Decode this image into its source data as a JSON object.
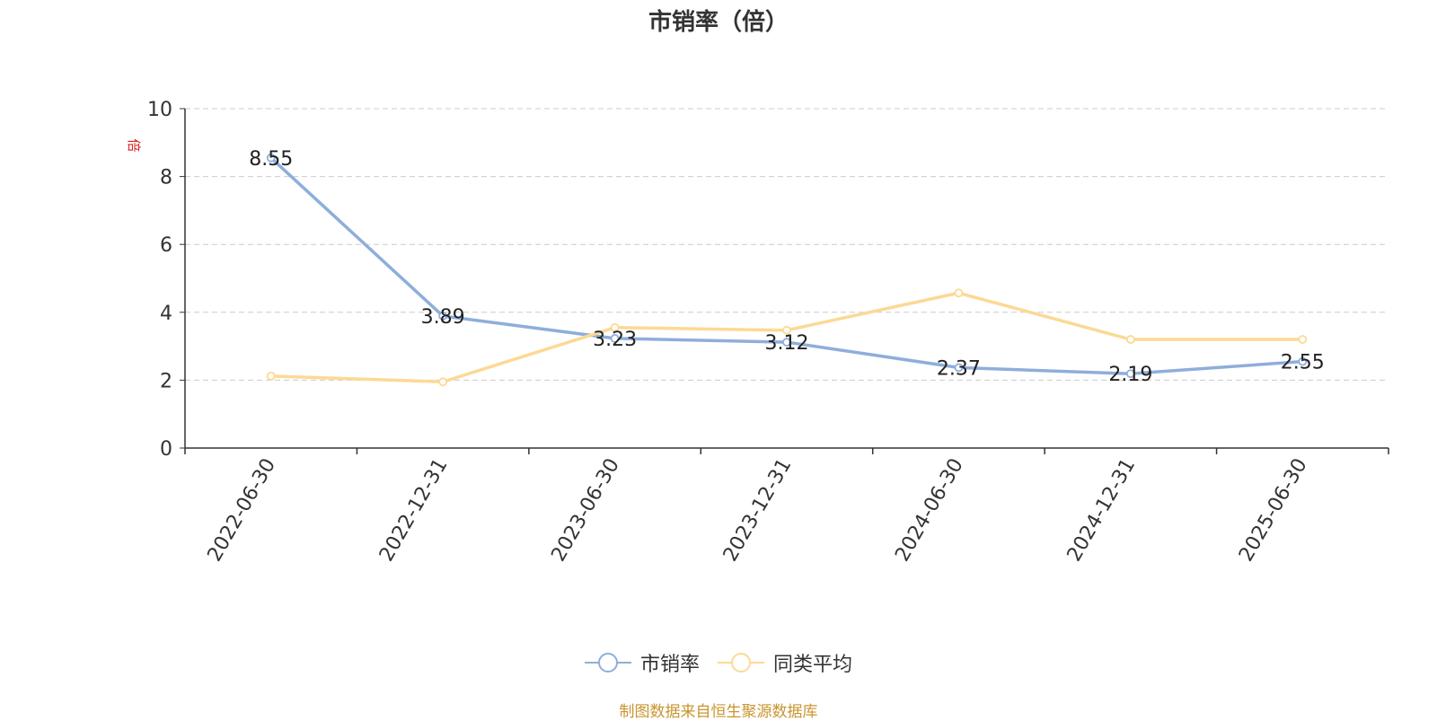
{
  "chart_data": {
    "type": "line",
    "title": "市销率（倍）",
    "ylabel": "倍",
    "ylim": [
      0,
      10
    ],
    "yticks": [
      0,
      2,
      4,
      6,
      8,
      10
    ],
    "categories": [
      "2022-06-30",
      "2022-12-31",
      "2023-06-30",
      "2023-12-31",
      "2024-06-30",
      "2024-12-31",
      "2025-06-30"
    ],
    "series": [
      {
        "name": "市销率",
        "color": "#8eaedb",
        "values": [
          8.55,
          3.89,
          3.23,
          3.12,
          2.37,
          2.19,
          2.55
        ],
        "data_labels": [
          "8.55",
          "3.89",
          "3.23",
          "3.12",
          "2.37",
          "2.19",
          "2.55"
        ]
      },
      {
        "name": "同类平均",
        "color": "#fcd994",
        "values": [
          2.12,
          1.95,
          3.55,
          3.47,
          4.57,
          3.2,
          3.2
        ]
      }
    ],
    "grid": true,
    "legend_position": "bottom-center",
    "source_note": "制图数据来自恒生聚源数据库"
  }
}
